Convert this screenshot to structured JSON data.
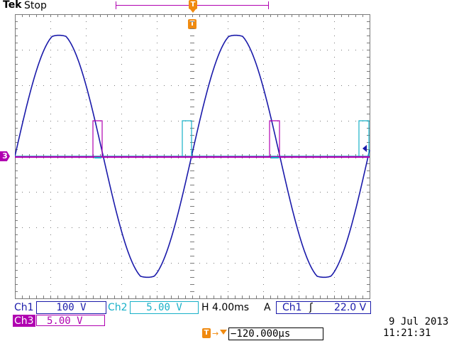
{
  "header": {
    "brand": "Tek",
    "acquisition_status": "Stop"
  },
  "markers": {
    "trigger_position_glyph": "T",
    "ch3_ground_glyph": "3",
    "horizontal_position_glyph": "T"
  },
  "icons": {
    "trigger_level_arrow": "left-arrow-icon",
    "trigger_slope": "rising-edge-icon"
  },
  "readouts": {
    "ch1": {
      "label": "Ch1",
      "scale": "100 V"
    },
    "ch2": {
      "label": "Ch2",
      "scale": "5.00 V"
    },
    "ch3": {
      "label": "Ch3",
      "scale": "5.00 V"
    },
    "timebase": "H 4.00ms",
    "trigger": {
      "mode": "A",
      "source": "Ch1",
      "slope": "ʃ",
      "level": "22.0 V"
    },
    "horizontal_position": "−120.000µs",
    "horizontal_position_arrow": "→"
  },
  "clock": {
    "date": "9 Jul  2013",
    "time": "11:21:31"
  },
  "colors": {
    "ch1": "#1a1aaa",
    "ch2": "#18b0c8",
    "ch3": "#b000b0",
    "trigger": "#f08a10",
    "graticule": "#7a7a7a"
  }
}
